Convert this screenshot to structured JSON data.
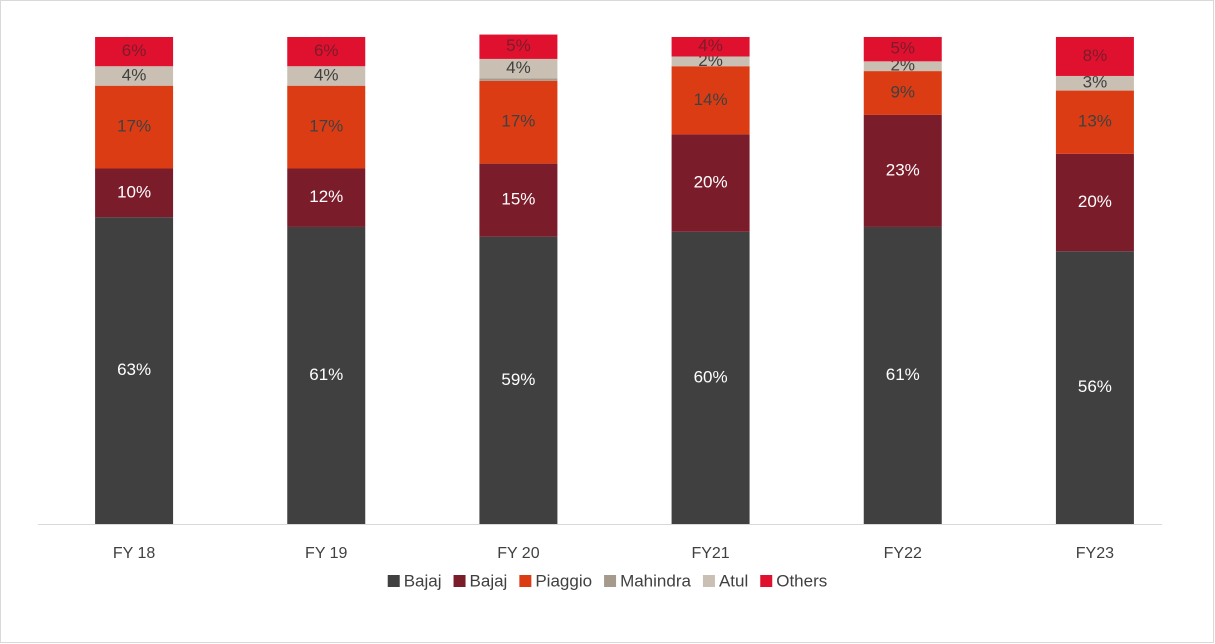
{
  "chart_data": {
    "type": "stacked_bar",
    "categories": [
      "FY 18",
      "FY 19",
      "FY 20",
      "FY21",
      "FY22",
      "FY23"
    ],
    "series": [
      {
        "name": "Bajaj",
        "color": "#404040",
        "label_color": "#ffffff",
        "values": [
          63,
          61,
          59,
          60,
          61,
          56
        ],
        "value_labels": [
          "63%",
          "61%",
          "59%",
          "60%",
          "61%",
          "56%"
        ]
      },
      {
        "name": "Bajaj",
        "color": "#7b1c2b",
        "label_color": "#ffffff",
        "values": [
          10,
          12,
          15,
          20,
          23,
          20
        ],
        "value_labels": [
          "10%",
          "12%",
          "15%",
          "20%",
          "23%",
          "20%"
        ]
      },
      {
        "name": "Piaggio",
        "color": "#dc3c14",
        "label_color": "#404040",
        "values": [
          17,
          17,
          17,
          14,
          9,
          13
        ],
        "value_labels": [
          "17%",
          "17%",
          "17%",
          "14%",
          "9%",
          "13%"
        ]
      },
      {
        "name": "Mahindra",
        "color": "#a59a8c",
        "values": [
          0,
          0,
          0.5,
          0,
          0,
          0
        ]
      },
      {
        "name": "Atul",
        "color": "#c9bfb2",
        "label_color": "#404040",
        "values": [
          4,
          4,
          4,
          2,
          2,
          3
        ],
        "value_labels": [
          "4%",
          "4%",
          "4%",
          "2%",
          "2%",
          "3%"
        ]
      },
      {
        "name": "Others",
        "color": "#e0102f",
        "label_color": "#7b1c2b",
        "values": [
          6,
          6,
          5,
          4,
          5,
          8
        ],
        "value_labels": [
          "6%",
          "6%",
          "5%",
          "4%",
          "5%",
          "8%"
        ]
      }
    ],
    "ylim": [
      0,
      100
    ],
    "legend": "bottom"
  }
}
